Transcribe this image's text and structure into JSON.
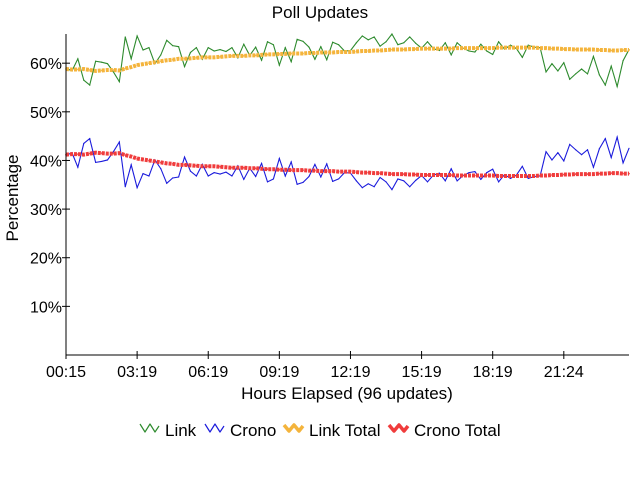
{
  "chart_data": {
    "type": "line",
    "title": "Poll Updates",
    "xlabel": "Hours Elapsed (96 updates)",
    "ylabel": "Percentage",
    "ylim": [
      0,
      66
    ],
    "xlim": [
      0,
      95
    ],
    "y_ticks": [
      {
        "value": 10,
        "label": "10%"
      },
      {
        "value": 20,
        "label": "20%"
      },
      {
        "value": 30,
        "label": "30%"
      },
      {
        "value": 40,
        "label": "40%"
      },
      {
        "value": 50,
        "label": "50%"
      },
      {
        "value": 60,
        "label": "60%"
      }
    ],
    "x_ticks": [
      {
        "index": 0,
        "label": "00:15"
      },
      {
        "index": 12,
        "label": "03:19"
      },
      {
        "index": 24,
        "label": "06:19"
      },
      {
        "index": 36,
        "label": "09:19"
      },
      {
        "index": 48,
        "label": "12:19"
      },
      {
        "index": 60,
        "label": "15:19"
      },
      {
        "index": 72,
        "label": "18:19"
      },
      {
        "index": 84,
        "label": "21:24"
      }
    ],
    "grid": false,
    "legend_position": "bottom",
    "series": [
      {
        "name": "Link",
        "color": "#2e8b2e",
        "style": "thin",
        "values": [
          59.0,
          58.4,
          60.9,
          56.5,
          55.5,
          60.4,
          60.2,
          59.9,
          58.2,
          56.2,
          65.4,
          60.9,
          65.6,
          62.7,
          63.2,
          59.9,
          61.7,
          64.7,
          63.6,
          63.4,
          59.3,
          62.2,
          63.2,
          60.8,
          63.2,
          62.5,
          62.8,
          62.4,
          63.2,
          61.1,
          63.9,
          61.6,
          63.3,
          60.6,
          64.4,
          63.8,
          59.6,
          63.2,
          60.3,
          64.9,
          64.5,
          63.3,
          60.8,
          63.4,
          60.7,
          64.3,
          63.8,
          62.5,
          62.6,
          64.2,
          65.6,
          64.8,
          65.4,
          63.5,
          64.4,
          66.0,
          63.8,
          64.2,
          65.4,
          64.1,
          63.1,
          64.4,
          63.0,
          62.6,
          64.2,
          61.7,
          64.2,
          63.1,
          62.5,
          62.3,
          63.9,
          62.5,
          61.8,
          64.4,
          62.9,
          63.7,
          63.0,
          61.2,
          63.7,
          63.3,
          63.2,
          58.2,
          59.9,
          58.4,
          60.1,
          56.7,
          57.8,
          58.8,
          57.8,
          61.4,
          57.6,
          55.5,
          59.4,
          55.2,
          60.5,
          62.8
        ]
      },
      {
        "name": "Crono",
        "color": "#1c1cdc",
        "style": "thin",
        "values": [
          41.0,
          41.6,
          38.6,
          43.5,
          44.5,
          39.6,
          39.8,
          40.1,
          41.8,
          43.8,
          34.6,
          39.1,
          34.4,
          37.3,
          36.8,
          40.1,
          38.3,
          35.3,
          36.4,
          36.6,
          40.7,
          37.8,
          36.8,
          39.2,
          36.8,
          37.5,
          37.2,
          37.6,
          36.8,
          38.9,
          36.1,
          38.4,
          36.7,
          39.4,
          35.6,
          36.2,
          40.4,
          36.8,
          39.7,
          35.1,
          35.5,
          36.7,
          39.2,
          36.6,
          39.3,
          35.7,
          36.2,
          37.5,
          37.4,
          35.8,
          34.4,
          35.2,
          34.6,
          36.5,
          35.6,
          34.0,
          36.2,
          35.8,
          34.6,
          35.9,
          36.9,
          35.6,
          37.0,
          37.4,
          35.8,
          38.3,
          35.8,
          36.9,
          37.5,
          37.7,
          36.1,
          37.5,
          38.2,
          35.6,
          37.1,
          36.3,
          37.0,
          38.8,
          36.3,
          36.7,
          36.8,
          41.8,
          40.1,
          41.6,
          39.9,
          43.3,
          42.2,
          41.2,
          42.2,
          38.6,
          42.4,
          44.5,
          40.6,
          44.8,
          39.5,
          42.5
        ]
      },
      {
        "name": "Link Total",
        "color": "#f4b43c",
        "style": "thick",
        "values": [
          58.8,
          58.7,
          58.7,
          58.8,
          58.6,
          58.4,
          58.5,
          58.6,
          58.6,
          58.5,
          58.9,
          59.2,
          59.6,
          59.8,
          60.0,
          60.2,
          60.4,
          60.6,
          60.7,
          60.9,
          60.9,
          61.0,
          61.1,
          61.2,
          61.2,
          61.2,
          61.3,
          61.4,
          61.5,
          61.5,
          61.5,
          61.6,
          61.6,
          61.7,
          61.8,
          61.8,
          61.9,
          61.9,
          62.0,
          62.0,
          62.0,
          62.1,
          62.1,
          62.2,
          62.2,
          62.2,
          62.3,
          62.3,
          62.3,
          62.4,
          62.5,
          62.5,
          62.6,
          62.6,
          62.7,
          62.8,
          62.8,
          62.8,
          62.9,
          62.9,
          63.0,
          63.0,
          63.0,
          63.0,
          63.0,
          63.0,
          63.1,
          63.1,
          63.1,
          63.1,
          63.1,
          63.1,
          63.1,
          63.2,
          63.2,
          63.2,
          63.2,
          63.2,
          63.2,
          63.2,
          63.1,
          63.1,
          63.0,
          63.0,
          62.9,
          62.9,
          62.8,
          62.8,
          62.8,
          62.8,
          62.7,
          62.7,
          62.6,
          62.6,
          62.7,
          62.7
        ]
      },
      {
        "name": "Crono Total",
        "color": "#f03c3c",
        "style": "thick",
        "values": [
          41.2,
          41.3,
          41.3,
          41.2,
          41.4,
          41.6,
          41.5,
          41.4,
          41.4,
          41.5,
          41.1,
          40.8,
          40.4,
          40.2,
          40.0,
          39.8,
          39.6,
          39.4,
          39.3,
          39.1,
          39.1,
          39.0,
          38.9,
          38.8,
          38.8,
          38.8,
          38.7,
          38.6,
          38.5,
          38.5,
          38.5,
          38.4,
          38.4,
          38.3,
          38.2,
          38.2,
          38.1,
          38.1,
          38.0,
          38.0,
          38.0,
          37.9,
          37.9,
          37.8,
          37.8,
          37.8,
          37.7,
          37.7,
          37.7,
          37.6,
          37.5,
          37.5,
          37.4,
          37.4,
          37.3,
          37.2,
          37.2,
          37.2,
          37.1,
          37.1,
          37.0,
          37.0,
          37.0,
          37.0,
          37.0,
          37.0,
          36.9,
          36.9,
          36.9,
          36.9,
          36.9,
          36.9,
          36.9,
          36.8,
          36.8,
          36.8,
          36.8,
          36.8,
          36.8,
          36.8,
          36.9,
          36.9,
          37.0,
          37.0,
          37.1,
          37.1,
          37.2,
          37.2,
          37.2,
          37.2,
          37.3,
          37.3,
          37.4,
          37.4,
          37.3,
          37.3
        ]
      }
    ]
  }
}
